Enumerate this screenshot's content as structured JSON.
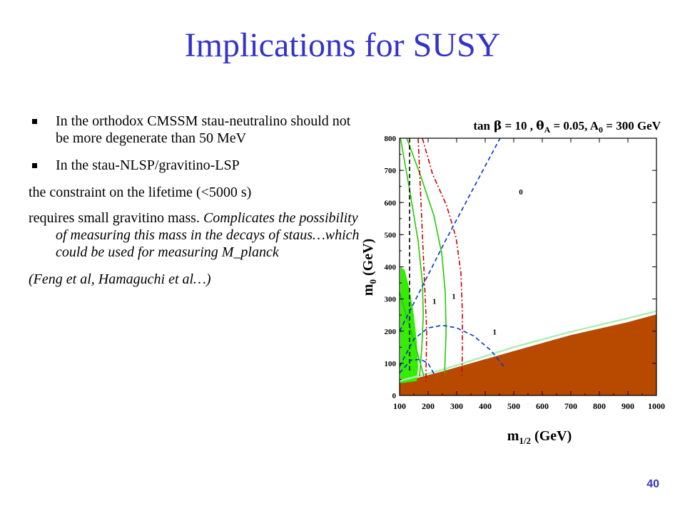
{
  "slide": {
    "title": "Implications for SUSY",
    "page_number": "40"
  },
  "bullets": {
    "b1": "In the orthodox CMSSM stau-neutralino should not be more degenerate than 50 MeV",
    "b2": "In the stau-NLSP/gravitino-LSP",
    "p1": "the constraint on the lifetime (<5000 s)",
    "p2_plain": "requires small gravitino mass. ",
    "p2_italic": "Complicates the possibility of measuring this mass in the decays of staus…which could be used for measuring M_planck",
    "p3": "(Feng et al, Hamaguchi et al…)"
  },
  "colors": {
    "title": "#3333cc",
    "stau_lsp_region": "#b84a00",
    "wmap_band": "#33ee00",
    "green_curve": "#22cc00",
    "pale_green_line": "#aaeebb",
    "blue_dash": "#0033cc",
    "red_dashdot": "#cc0000",
    "black_dash": "#000000"
  },
  "chart_data": {
    "type": "scatter",
    "title": "tan β = 10 ,  θ_A = 0.05, A_0 = 300 GeV",
    "title_parts": [
      "tan",
      "β",
      " = 10 ,  ",
      "θ",
      "A",
      " = 0.05, A",
      "0",
      " = 300 GeV"
    ],
    "xlabel_parts": [
      "m",
      "1/2",
      " (GeV)"
    ],
    "ylabel_parts": [
      "m",
      "0",
      " (GeV)"
    ],
    "xlim": [
      100,
      1000
    ],
    "ylim": [
      0,
      800
    ],
    "xticks": [
      100,
      200,
      300,
      400,
      500,
      600,
      700,
      800,
      900,
      1000
    ],
    "yticks": [
      0,
      100,
      200,
      300,
      400,
      500,
      600,
      700,
      800
    ],
    "grid": false,
    "regions": [
      {
        "name": "stau-LSP",
        "color": "#b84a00",
        "points": [
          [
            100,
            30
          ],
          [
            100,
            40
          ],
          [
            250,
            75
          ],
          [
            500,
            138
          ],
          [
            700,
            188
          ],
          [
            900,
            228
          ],
          [
            1000,
            252
          ],
          [
            1000,
            0
          ],
          [
            100,
            0
          ]
        ]
      },
      {
        "name": "WMAP",
        "color": "#33ee00",
        "points": [
          [
            103,
            400
          ],
          [
            118,
            390
          ],
          [
            135,
            330
          ],
          [
            150,
            250
          ],
          [
            160,
            170
          ],
          [
            165,
            90
          ],
          [
            160,
            45
          ],
          [
            103,
            38
          ]
        ]
      }
    ],
    "curves": [
      {
        "id": "pale-green-boundary",
        "color": "#aaeebb",
        "style": "solid",
        "points": [
          [
            100,
            45
          ],
          [
            250,
            80
          ],
          [
            500,
            150
          ],
          [
            700,
            198
          ],
          [
            900,
            240
          ],
          [
            1000,
            262
          ]
        ]
      },
      {
        "id": "green-curve-left",
        "color": "#22cc00",
        "style": "solid",
        "points": [
          [
            103,
            800
          ],
          [
            135,
            640
          ],
          [
            165,
            480
          ],
          [
            180,
            350
          ],
          [
            183,
            250
          ],
          [
            178,
            150
          ],
          [
            170,
            60
          ]
        ]
      },
      {
        "id": "green-curve-right",
        "color": "#22cc00",
        "style": "solid",
        "points": [
          [
            125,
            800
          ],
          [
            175,
            680
          ],
          [
            220,
            560
          ],
          [
            248,
            440
          ],
          [
            260,
            320
          ],
          [
            263,
            200
          ],
          [
            258,
            70
          ]
        ]
      },
      {
        "id": "green-curve-inner",
        "color": "#22cc00",
        "style": "solid",
        "points": [
          [
            100,
            320
          ],
          [
            130,
            230
          ],
          [
            160,
            140
          ],
          [
            185,
            60
          ]
        ]
      },
      {
        "id": "red-curve-1",
        "color": "#cc0000",
        "style": "dashdot",
        "points": [
          [
            165,
            800
          ],
          [
            175,
            600
          ],
          [
            185,
            400
          ],
          [
            195,
            200
          ],
          [
            192,
            40
          ]
        ]
      },
      {
        "id": "red-curve-2",
        "color": "#cc0000",
        "style": "dashdot",
        "points": [
          [
            180,
            800
          ],
          [
            215,
            690
          ],
          [
            265,
            590
          ],
          [
            298,
            490
          ],
          [
            315,
            380
          ],
          [
            320,
            260
          ],
          [
            320,
            140
          ],
          [
            318,
            60
          ]
        ]
      },
      {
        "id": "black-dashed",
        "color": "#000000",
        "style": "dashed",
        "points": [
          [
            135,
            800
          ],
          [
            135,
            75
          ]
        ]
      },
      {
        "id": "blue-diagonal",
        "color": "#0033cc",
        "style": "dashed",
        "points": [
          [
            100,
            200
          ],
          [
            180,
            340
          ],
          [
            260,
            480
          ],
          [
            350,
            630
          ],
          [
            440,
            780
          ],
          [
            452,
            800
          ]
        ]
      },
      {
        "id": "blue-arc-large",
        "color": "#0033cc",
        "style": "dashed",
        "points": [
          [
            100,
            90
          ],
          [
            150,
            175
          ],
          [
            200,
            210
          ],
          [
            250,
            218
          ],
          [
            300,
            210
          ],
          [
            360,
            185
          ],
          [
            420,
            140
          ],
          [
            465,
            90
          ]
        ]
      },
      {
        "id": "blue-arc-small",
        "color": "#0033cc",
        "style": "dashed",
        "points": [
          [
            100,
            70
          ],
          [
            140,
            110
          ],
          [
            175,
            112
          ],
          [
            200,
            100
          ],
          [
            225,
            60
          ]
        ]
      }
    ],
    "annotations": [
      {
        "text": "0",
        "x": 525,
        "y": 625
      },
      {
        "text": "1",
        "x": 222,
        "y": 285
      },
      {
        "text": "1",
        "x": 290,
        "y": 300
      },
      {
        "text": "1",
        "x": 433,
        "y": 190
      }
    ]
  }
}
